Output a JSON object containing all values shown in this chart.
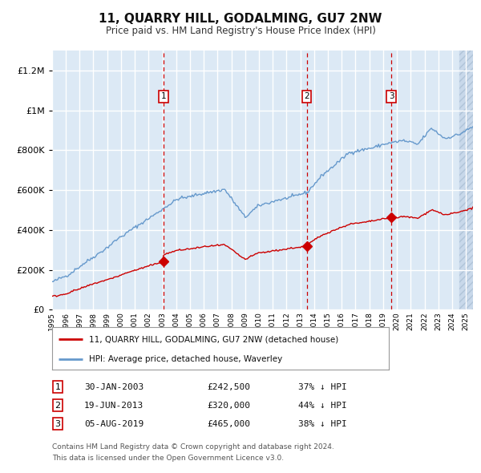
{
  "title": "11, QUARRY HILL, GODALMING, GU7 2NW",
  "subtitle": "Price paid vs. HM Land Registry's House Price Index (HPI)",
  "legend_label_red": "11, QUARRY HILL, GODALMING, GU7 2NW (detached house)",
  "legend_label_blue": "HPI: Average price, detached house, Waverley",
  "footer_line1": "Contains HM Land Registry data © Crown copyright and database right 2024.",
  "footer_line2": "This data is licensed under the Open Government Licence v3.0.",
  "sale_points": [
    {
      "label": "1",
      "date_str": "30-JAN-2003",
      "price": 242500,
      "price_str": "£242,500",
      "pct": "37% ↓ HPI",
      "x": 2003.08
    },
    {
      "label": "2",
      "date_str": "19-JUN-2013",
      "price": 320000,
      "price_str": "£320,000",
      "pct": "44% ↓ HPI",
      "x": 2013.46
    },
    {
      "label": "3",
      "date_str": "05-AUG-2019",
      "price": 465000,
      "price_str": "£465,000",
      "pct": "38% ↓ HPI",
      "x": 2019.59
    }
  ],
  "ylim": [
    0,
    1300000
  ],
  "xlim_start": 1995.0,
  "xlim_end": 2025.5,
  "background_color": "#dce9f5",
  "grid_color": "#ffffff",
  "red_line_color": "#cc0000",
  "blue_line_color": "#6699cc",
  "dashed_line_color": "#cc0000",
  "marker_color": "#cc0000"
}
